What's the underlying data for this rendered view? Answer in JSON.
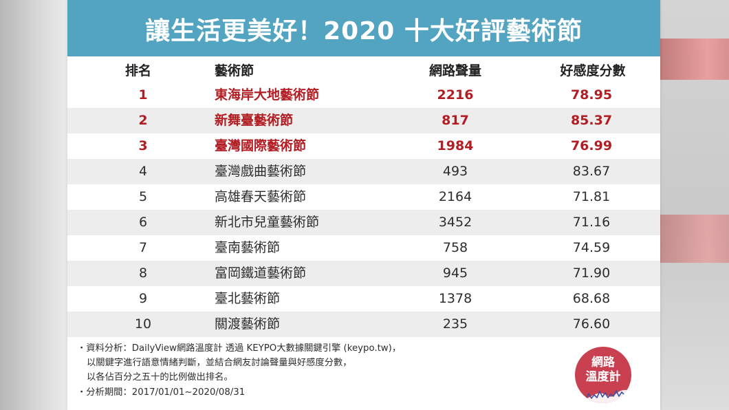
{
  "header": {
    "title": "讓生活更美好！2020 十大好評藝術節"
  },
  "table": {
    "columns": {
      "rank": "排名",
      "festival": "藝術節",
      "volume": "網路聲量",
      "score": "好感度分數"
    },
    "rows": [
      {
        "rank": "1",
        "festival": "東海岸大地藝術節",
        "volume": "2216",
        "score": "78.95",
        "highlight": true
      },
      {
        "rank": "2",
        "festival": "新舞臺藝術節",
        "volume": "817",
        "score": "85.37",
        "highlight": true
      },
      {
        "rank": "3",
        "festival": "臺灣國際藝術節",
        "volume": "1984",
        "score": "76.99",
        "highlight": true
      },
      {
        "rank": "4",
        "festival": "臺灣戲曲藝術節",
        "volume": "493",
        "score": "83.67",
        "highlight": false
      },
      {
        "rank": "5",
        "festival": "高雄春天藝術節",
        "volume": "2164",
        "score": "71.81",
        "highlight": false
      },
      {
        "rank": "6",
        "festival": "新北市兒童藝術節",
        "volume": "3452",
        "score": "71.16",
        "highlight": false
      },
      {
        "rank": "7",
        "festival": "臺南藝術節",
        "volume": "758",
        "score": "74.59",
        "highlight": false
      },
      {
        "rank": "8",
        "festival": "富岡鐵道藝術節",
        "volume": "945",
        "score": "71.90",
        "highlight": false
      },
      {
        "rank": "9",
        "festival": "臺北藝術節",
        "volume": "1378",
        "score": "68.68",
        "highlight": false
      },
      {
        "rank": "10",
        "festival": "關渡藝術節",
        "volume": "235",
        "score": "76.60",
        "highlight": false
      }
    ]
  },
  "notes": [
    "・資料分析：DailyView網路溫度計 透過 KEYPO大數據關鍵引擎 (keypo.tw)，",
    "以關鍵字進行語意情緒判斷，並結合網友討論聲量與好感度分數，",
    "以各佔百分之五十的比例做出排名。",
    "・分析期間：2017/01/01~2020/08/31"
  ],
  "logo": {
    "line1": "網路",
    "line2": "溫度計"
  },
  "colors": {
    "header_background": "#53a4c1",
    "highlight_text": "#b11d22",
    "row_alt": "#ededed",
    "logo_background": "#c94150"
  }
}
